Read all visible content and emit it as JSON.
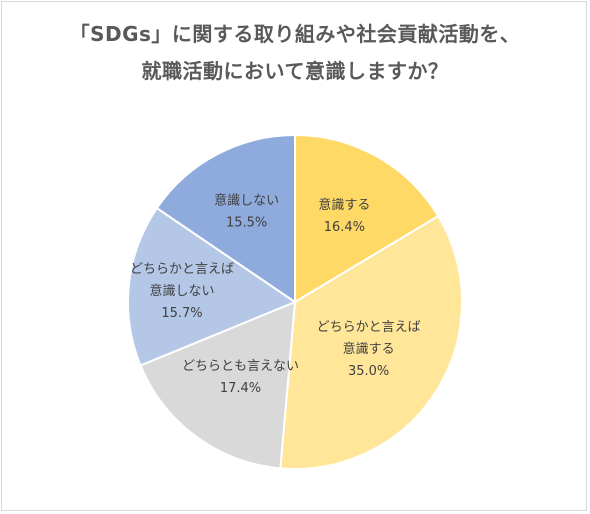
{
  "chart_data": {
    "type": "pie",
    "title_lines": [
      "「SDGs」に関する取り組みや社会貢献活動を、",
      "就職活動において意識しますか？"
    ],
    "slices": [
      {
        "label_lines": [
          "意識する"
        ],
        "value_text": "16.4%",
        "value": 16.4,
        "color": "#ffd966"
      },
      {
        "label_lines": [
          "どちらかと言えば",
          "意識する"
        ],
        "value_text": "35.0%",
        "value": 35.0,
        "color": "#ffe699"
      },
      {
        "label_lines": [
          "どちらとも言えない"
        ],
        "value_text": "17.4%",
        "value": 17.4,
        "color": "#d9d9d9"
      },
      {
        "label_lines": [
          "どちらかと言えば",
          "意識しない"
        ],
        "value_text": "15.7%",
        "value": 15.7,
        "color": "#b4c7e7"
      },
      {
        "label_lines": [
          "意識しない"
        ],
        "value_text": "15.5%",
        "value": 15.5,
        "color": "#8faadc"
      }
    ],
    "start_angle": "12 o'clock",
    "direction": "clockwise",
    "legend": "none"
  }
}
